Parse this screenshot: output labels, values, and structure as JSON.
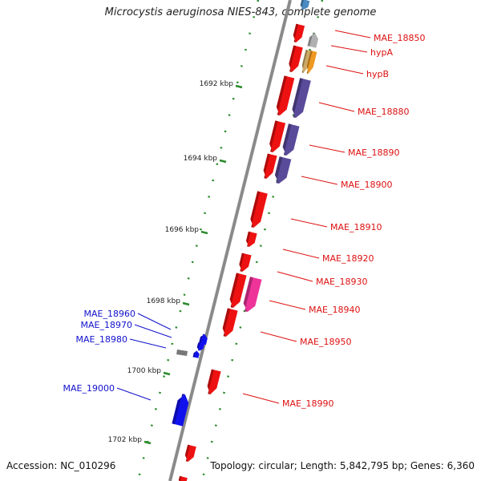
{
  "title": "Microcystis aeruginosa NIES-843, complete genome",
  "footer": {
    "accession": "Accession: NC_010296",
    "topology": "Topology: circular; Length: 5,842,795 bp; Genes: 6,360"
  },
  "ticks": [
    "1692 kbp",
    "1694 kbp",
    "1696 kbp",
    "1698 kbp",
    "1700 kbp",
    "1702 kbp"
  ],
  "colors": {
    "forward": "#ee1111",
    "reverse_blue": "#1111ee",
    "purple": "#5a4a9a",
    "pink": "#ee3399",
    "orange": "#ee9922",
    "tan": "#ccaa66",
    "gray": "#b0b0b0",
    "tick": "#2a8a2a",
    "backbone": "#808080",
    "label_red": "#dd1111",
    "label_blue": "#1111cc"
  },
  "genes_right": [
    "MAE_18850",
    "hypA",
    "hypB",
    "MAE_18880",
    "MAE_18890",
    "MAE_18900",
    "MAE_18910",
    "MAE_18920",
    "MAE_18930",
    "MAE_18940",
    "MAE_18950",
    "MAE_18990"
  ],
  "genes_left": [
    "MAE_18960",
    "MAE_18970",
    "MAE_18980",
    "MAE_19000"
  ]
}
